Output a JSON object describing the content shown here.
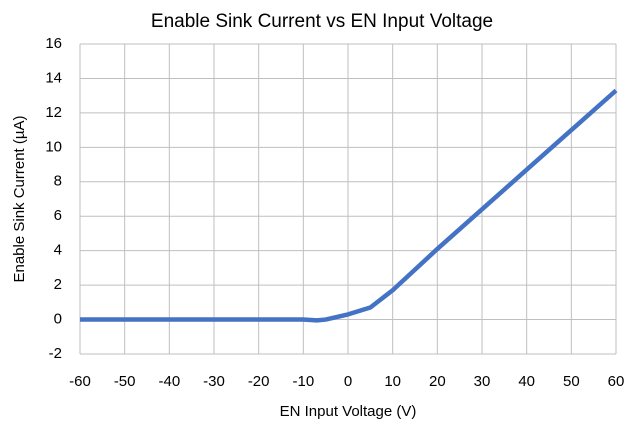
{
  "chart_data": {
    "type": "line",
    "title": "Enable Sink Current vs EN Input Voltage",
    "xlabel": "EN Input Voltage (V)",
    "ylabel": "Enable Sink Current (µA)",
    "x": [
      -60,
      -50,
      -40,
      -30,
      -20,
      -10,
      -7,
      -5,
      0,
      5,
      7,
      10,
      20,
      30,
      40,
      50,
      60
    ],
    "series": [
      {
        "name": "Enable Sink Current",
        "color": "#4472c4",
        "values": [
          0,
          0,
          0,
          0,
          0,
          0,
          -0.05,
          0,
          0.3,
          0.7,
          1.1,
          1.7,
          4.1,
          6.4,
          8.7,
          11,
          13.3
        ]
      }
    ],
    "xlim": [
      -60,
      60
    ],
    "xticks": [
      -60,
      -50,
      -40,
      -30,
      -20,
      -10,
      0,
      10,
      20,
      30,
      40,
      50,
      60
    ],
    "ylim": [
      -2,
      16
    ],
    "yticks": [
      -2,
      0,
      2,
      4,
      6,
      8,
      10,
      12,
      14,
      16
    ],
    "grid": true
  }
}
